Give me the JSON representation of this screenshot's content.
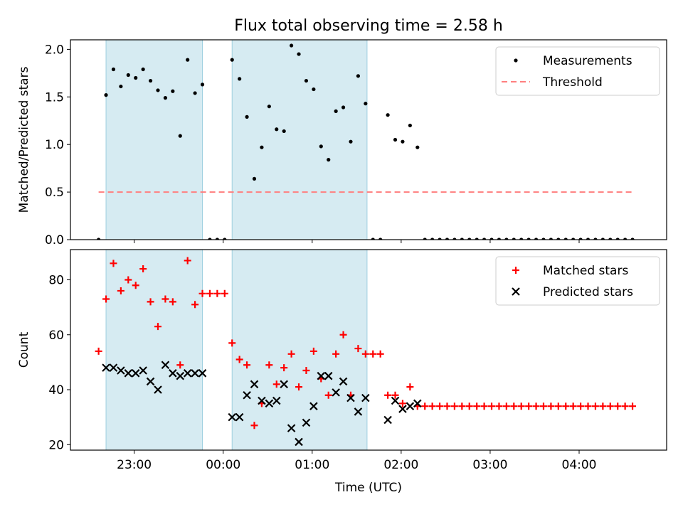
{
  "title": "Flux total observing time = 2.58 h",
  "colors": {
    "band": "#add8e6",
    "band_edge": "#9ecfdf",
    "measurement": "#000000",
    "threshold": "#ff7f7f",
    "matched": "#ff0000",
    "predicted": "#000000"
  },
  "chart_data": [
    {
      "type": "scatter",
      "panel": "top",
      "ylabel": "Matched/Predicted stars",
      "xlabel": "",
      "ylim": [
        0,
        2.1
      ],
      "yticks": [
        0.0,
        0.5,
        1.0,
        1.5,
        2.0
      ],
      "ytick_labels": [
        "0.0",
        "0.5",
        "1.0",
        "1.5",
        "2.0"
      ],
      "x_unit": "minutes from 00:00 UTC",
      "xlim": [
        -103,
        299
      ],
      "bands": [
        [
          -79,
          -14
        ],
        [
          6,
          97
        ]
      ],
      "legend": {
        "position": "upper right",
        "entries": [
          "Measurements",
          "Threshold"
        ]
      },
      "threshold": {
        "name": "Threshold",
        "value": 0.5,
        "x_start": -84,
        "x_end": 276
      },
      "series": [
        {
          "name": "Measurements",
          "x": [
            -84,
            -79,
            -74,
            -69,
            -64,
            -59,
            -54,
            -49,
            -44,
            -39,
            -34,
            -29,
            -24,
            -19,
            -14,
            -9,
            -4,
            1,
            6,
            11,
            16,
            21,
            26,
            31,
            36,
            41,
            46,
            51,
            56,
            61,
            66,
            71,
            76,
            81,
            86,
            91,
            96,
            101,
            106,
            111,
            116,
            121,
            126,
            131,
            136,
            141,
            146,
            151,
            156,
            161,
            166,
            171,
            176,
            181,
            186,
            191,
            196,
            201,
            206,
            211,
            216,
            221,
            226,
            231,
            236,
            241,
            246,
            251,
            256,
            261,
            266,
            271,
            276
          ],
          "y": [
            0.0,
            1.52,
            1.79,
            1.61,
            1.73,
            1.7,
            1.79,
            1.67,
            1.57,
            1.49,
            1.56,
            1.09,
            1.89,
            1.54,
            1.63,
            0.0,
            0.0,
            0.0,
            1.89,
            1.69,
            1.29,
            0.64,
            0.97,
            1.4,
            1.16,
            1.14,
            2.04,
            1.95,
            1.67,
            1.58,
            0.98,
            0.84,
            1.35,
            1.39,
            1.03,
            1.72,
            1.43,
            0.0,
            0.0,
            1.31,
            1.05,
            1.03,
            1.2,
            0.97,
            0.0,
            0.0,
            0.0,
            0.0,
            0.0,
            0.0,
            0.0,
            0.0,
            0.0,
            0.0,
            0.0,
            0.0,
            0.0,
            0.0,
            0.0,
            0.0,
            0.0,
            0.0,
            0.0,
            0.0,
            0.0,
            0.0,
            0.0,
            0.0,
            0.0,
            0.0,
            0.0,
            0.0,
            0.0
          ]
        }
      ]
    },
    {
      "type": "scatter",
      "panel": "bottom",
      "ylabel": "Count",
      "xlabel": "Time (UTC)",
      "ylim": [
        18,
        91
      ],
      "yticks": [
        20,
        40,
        60,
        80
      ],
      "ytick_labels": [
        "20",
        "40",
        "60",
        "80"
      ],
      "x_unit": "minutes from 00:00 UTC",
      "xlim": [
        -103,
        299
      ],
      "xticks": [
        -60,
        0,
        60,
        120,
        180,
        240
      ],
      "xtick_labels": [
        "23:00",
        "00:00",
        "01:00",
        "02:00",
        "03:00",
        "04:00"
      ],
      "bands": [
        [
          -79,
          -14
        ],
        [
          6,
          97
        ]
      ],
      "legend": {
        "position": "upper right",
        "entries": [
          "Matched stars",
          "Predicted stars"
        ]
      },
      "series": [
        {
          "name": "Matched stars",
          "marker": "plus",
          "x": [
            -84,
            -79,
            -74,
            -69,
            -64,
            -59,
            -54,
            -49,
            -44,
            -39,
            -34,
            -29,
            -24,
            -19,
            -14,
            -9,
            -4,
            1,
            6,
            11,
            16,
            21,
            26,
            31,
            36,
            41,
            46,
            51,
            56,
            61,
            66,
            71,
            76,
            81,
            86,
            91,
            96,
            101,
            106,
            111,
            116,
            121,
            126,
            131,
            136,
            141,
            146,
            151,
            156,
            161,
            166,
            171,
            176,
            181,
            186,
            191,
            196,
            201,
            206,
            211,
            216,
            221,
            226,
            231,
            236,
            241,
            246,
            251,
            256,
            261,
            266,
            271,
            276
          ],
          "y": [
            54,
            73,
            86,
            76,
            80,
            78,
            84,
            72,
            63,
            73,
            72,
            49,
            87,
            71,
            75,
            75,
            75,
            75,
            57,
            51,
            49,
            27,
            35,
            49,
            42,
            48,
            53,
            41,
            47,
            54,
            44,
            38,
            53,
            60,
            38,
            55,
            53,
            53,
            53,
            38,
            38,
            35,
            41,
            34,
            34,
            34,
            34,
            34,
            34,
            34,
            34,
            34,
            34,
            34,
            34,
            34,
            34,
            34,
            34,
            34,
            34,
            34,
            34,
            34,
            34,
            34,
            34,
            34,
            34,
            34,
            34,
            34,
            34
          ]
        },
        {
          "name": "Predicted stars",
          "marker": "x",
          "x": [
            -79,
            -74,
            -69,
            -64,
            -59,
            -54,
            -49,
            -44,
            -39,
            -34,
            -29,
            -24,
            -19,
            -14,
            6,
            11,
            16,
            21,
            26,
            31,
            36,
            41,
            46,
            51,
            56,
            61,
            66,
            71,
            76,
            81,
            86,
            91,
            96,
            111,
            116,
            121,
            126,
            131
          ],
          "y": [
            48,
            48,
            47,
            46,
            46,
            47,
            43,
            40,
            49,
            46,
            45,
            46,
            46,
            46,
            30,
            30,
            38,
            42,
            36,
            35,
            36,
            42,
            26,
            21,
            28,
            34,
            45,
            45,
            39,
            43,
            37,
            32,
            37,
            29,
            36,
            33,
            34,
            35
          ]
        }
      ]
    }
  ]
}
